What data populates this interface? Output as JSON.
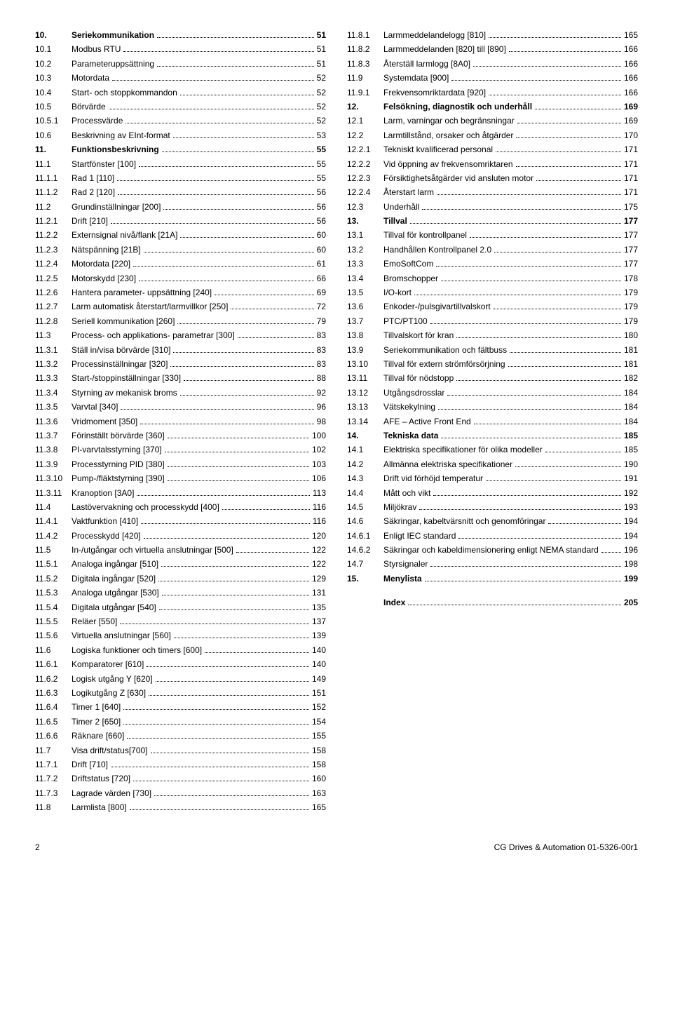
{
  "footer": {
    "pageNumber": "2",
    "docId": "CG Drives & Automation 01-5326-00r1"
  },
  "left": [
    {
      "n": "10.",
      "t": "Seriekommunikation",
      "p": "51",
      "b": true
    },
    {
      "n": "10.1",
      "t": "Modbus RTU",
      "p": "51"
    },
    {
      "n": "10.2",
      "t": "Parameteruppsättning",
      "p": "51"
    },
    {
      "n": "10.3",
      "t": "Motordata",
      "p": "52"
    },
    {
      "n": "10.4",
      "t": "Start- och stoppkommandon",
      "p": "52"
    },
    {
      "n": "10.5",
      "t": "Börvärde",
      "p": "52"
    },
    {
      "n": "10.5.1",
      "t": "Processvärde",
      "p": "52"
    },
    {
      "n": "10.6",
      "t": "Beskrivning av EInt-format",
      "p": "53"
    },
    {
      "n": "11.",
      "t": "Funktionsbeskrivning",
      "p": "55",
      "b": true
    },
    {
      "n": "11.1",
      "t": "Startfönster [100]",
      "p": "55"
    },
    {
      "n": "11.1.1",
      "t": "Rad 1 [110]",
      "p": "55"
    },
    {
      "n": "11.1.2",
      "t": "Rad 2 [120]",
      "p": "56"
    },
    {
      "n": "11.2",
      "t": "Grundinställningar [200]",
      "p": "56"
    },
    {
      "n": "11.2.1",
      "t": "Drift [210]",
      "p": "56"
    },
    {
      "n": "11.2.2",
      "t": "Externsignal nivå/flank [21A]",
      "p": "60"
    },
    {
      "n": "11.2.3",
      "t": "Nätspänning [21B]",
      "p": "60"
    },
    {
      "n": "11.2.4",
      "t": "Motordata [220]",
      "p": "61"
    },
    {
      "n": "11.2.5",
      "t": "Motorskydd [230]",
      "p": "66"
    },
    {
      "n": "11.2.6",
      "t": "Hantera parameter- uppsättning [240]",
      "p": "69"
    },
    {
      "n": "11.2.7",
      "t": "Larm automatisk återstart/larmvillkor [250]",
      "p": "72"
    },
    {
      "n": "11.2.8",
      "t": "Seriell kommunikation [260]",
      "p": "79"
    },
    {
      "n": "11.3",
      "t": "Process- och applikations- parametrar [300]",
      "p": "83"
    },
    {
      "n": "11.3.1",
      "t": "Ställ in/visa börvärde [310]",
      "p": "83"
    },
    {
      "n": "11.3.2",
      "t": "Processinställningar [320]",
      "p": "83"
    },
    {
      "n": "11.3.3",
      "t": "Start-/stoppinställningar [330]",
      "p": "88"
    },
    {
      "n": "11.3.4",
      "t": "Styrning av mekanisk broms",
      "p": "92"
    },
    {
      "n": "11.3.5",
      "t": "Varvtal [340]",
      "p": "96"
    },
    {
      "n": "11.3.6",
      "t": "Vridmoment [350]",
      "p": "98"
    },
    {
      "n": "11.3.7",
      "t": "Förinställt börvärde [360]",
      "p": "100"
    },
    {
      "n": "11.3.8",
      "t": "PI-varvtalsstyrning [370]",
      "p": "102"
    },
    {
      "n": "11.3.9",
      "t": "Processtyrning PID [380]",
      "p": "103"
    },
    {
      "n": "11.3.10",
      "t": "Pump-/fläktstyrning [390]",
      "p": "106"
    },
    {
      "n": "11.3.11",
      "t": "Kranoption [3A0]",
      "p": "113"
    },
    {
      "n": "11.4",
      "t": "Lastövervakning och processkydd [400]",
      "p": "116"
    },
    {
      "n": "11.4.1",
      "t": "Vaktfunktion [410]",
      "p": "116"
    },
    {
      "n": "11.4.2",
      "t": "Processkydd [420]",
      "p": "120"
    },
    {
      "n": "11.5",
      "t": "In-/utgångar och virtuella anslutningar [500]",
      "p": "122"
    },
    {
      "n": "11.5.1",
      "t": "Analoga ingångar [510]",
      "p": "122"
    },
    {
      "n": "11.5.2",
      "t": "Digitala ingångar [520]",
      "p": "129"
    },
    {
      "n": "11.5.3",
      "t": "Analoga utgångar [530]",
      "p": "131"
    },
    {
      "n": "11.5.4",
      "t": "Digitala utgångar [540]",
      "p": "135"
    },
    {
      "n": "11.5.5",
      "t": "Reläer [550]",
      "p": "137"
    },
    {
      "n": "11.5.6",
      "t": "Virtuella anslutningar [560]",
      "p": "139"
    },
    {
      "n": "11.6",
      "t": "Logiska funktioner och timers [600]",
      "p": "140"
    },
    {
      "n": "11.6.1",
      "t": "Komparatorer [610]",
      "p": "140"
    },
    {
      "n": "11.6.2",
      "t": "Logisk utgång Y [620]",
      "p": "149"
    },
    {
      "n": "11.6.3",
      "t": "Logikutgång Z [630]",
      "p": "151"
    },
    {
      "n": "11.6.4",
      "t": "Timer 1 [640]",
      "p": "152"
    },
    {
      "n": "11.6.5",
      "t": "Timer 2 [650]",
      "p": "154"
    },
    {
      "n": "11.6.6",
      "t": "Räknare [660]",
      "p": "155"
    },
    {
      "n": "11.7",
      "t": "Visa drift/status[700]",
      "p": "158"
    },
    {
      "n": "11.7.1",
      "t": "Drift [710]",
      "p": "158"
    },
    {
      "n": "11.7.2",
      "t": "Driftstatus [720]",
      "p": "160"
    },
    {
      "n": "11.7.3",
      "t": "Lagrade värden [730]",
      "p": "163"
    },
    {
      "n": "11.8",
      "t": "Larmlista [800]",
      "p": "165"
    }
  ],
  "right": [
    {
      "n": "11.8.1",
      "t": "Larmmeddelandelogg [810]",
      "p": "165"
    },
    {
      "n": "11.8.2",
      "t": "Larmmeddelanden [820] till [890]",
      "p": "166"
    },
    {
      "n": "11.8.3",
      "t": "Återställ larmlogg [8A0]",
      "p": "166"
    },
    {
      "n": "11.9",
      "t": "Systemdata [900]",
      "p": "166"
    },
    {
      "n": "11.9.1",
      "t": "Frekvensomriktardata [920]",
      "p": "166"
    },
    {
      "n": "12.",
      "t": "Felsökning, diagnostik och underhåll",
      "p": "169",
      "b": true
    },
    {
      "n": "12.1",
      "t": "Larm, varningar och begränsningar",
      "p": "169"
    },
    {
      "n": "12.2",
      "t": "Larmtillstånd, orsaker och åtgärder",
      "p": "170"
    },
    {
      "n": "12.2.1",
      "t": "Tekniskt kvalificerad personal",
      "p": "171"
    },
    {
      "n": "12.2.2",
      "t": "Vid öppning av frekvensomriktaren",
      "p": "171"
    },
    {
      "n": "12.2.3",
      "t": "Försiktighetsåtgärder vid ansluten motor",
      "p": "171"
    },
    {
      "n": "12.2.4",
      "t": "Återstart larm",
      "p": "171"
    },
    {
      "n": "12.3",
      "t": "Underhåll",
      "p": "175"
    },
    {
      "n": "13.",
      "t": "Tillval",
      "p": "177",
      "b": true
    },
    {
      "n": "13.1",
      "t": "Tillval för kontrollpanel",
      "p": "177"
    },
    {
      "n": "13.2",
      "t": "Handhållen Kontrollpanel 2.0",
      "p": "177"
    },
    {
      "n": "13.3",
      "t": "EmoSoftCom",
      "p": "177"
    },
    {
      "n": "13.4",
      "t": "Bromschopper",
      "p": "178"
    },
    {
      "n": "13.5",
      "t": "I/O-kort",
      "p": "179"
    },
    {
      "n": "13.6",
      "t": "Enkoder-/pulsgivartillvalskort",
      "p": "179"
    },
    {
      "n": "13.7",
      "t": "PTC/PT100",
      "p": "179"
    },
    {
      "n": "13.8",
      "t": "Tillvalskort för kran",
      "p": "180"
    },
    {
      "n": "13.9",
      "t": "Seriekommunikation och fältbuss",
      "p": "181"
    },
    {
      "n": "13.10",
      "t": "Tillval för extern strömförsörjning",
      "p": "181"
    },
    {
      "n": "13.11",
      "t": "Tillval för nödstopp",
      "p": "182"
    },
    {
      "n": "13.12",
      "t": "Utgångsdrosslar",
      "p": "184"
    },
    {
      "n": "13.13",
      "t": "Vätskekylning",
      "p": "184"
    },
    {
      "n": "13.14",
      "t": "AFE – Active Front End",
      "p": "184"
    },
    {
      "n": "14.",
      "t": "Tekniska data",
      "p": "185",
      "b": true
    },
    {
      "n": "14.1",
      "t": "Elektriska specifikationer för olika modeller",
      "p": "185"
    },
    {
      "n": "14.2",
      "t": "Allmänna elektriska specifikationer",
      "p": "190"
    },
    {
      "n": "14.3",
      "t": "Drift vid förhöjd temperatur",
      "p": "191"
    },
    {
      "n": "14.4",
      "t": "Mått och vikt",
      "p": "192"
    },
    {
      "n": "14.5",
      "t": "Miljökrav",
      "p": "193"
    },
    {
      "n": "14.6",
      "t": "Säkringar, kabeltvärsnitt och genomföringar",
      "p": "194"
    },
    {
      "n": "14.6.1",
      "t": "Enligt IEC standard",
      "p": "194"
    },
    {
      "n": "14.6.2",
      "t": "Säkringar och kabeldimensionering enligt NEMA standard",
      "p": "196"
    },
    {
      "n": "14.7",
      "t": "Styrsignaler",
      "p": "198"
    },
    {
      "n": "15.",
      "t": "Menylista",
      "p": "199",
      "b": true
    },
    {
      "n": "",
      "t": "Index",
      "p": "205",
      "b": true,
      "spacer": true
    }
  ]
}
